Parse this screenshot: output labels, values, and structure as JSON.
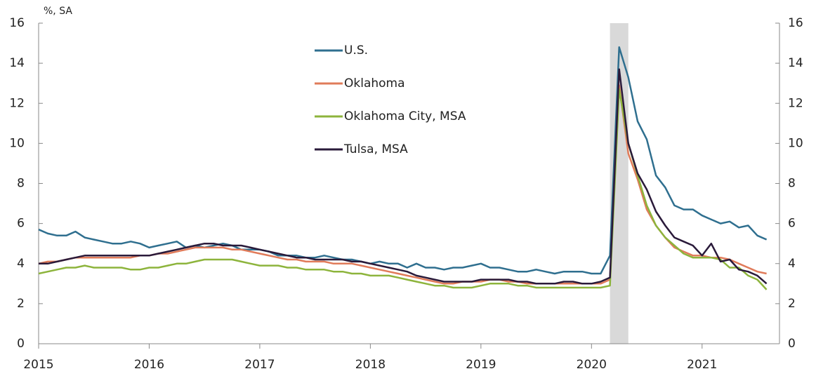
{
  "chart_data": {
    "type": "line",
    "y_label": "%, SA",
    "x": [
      2015,
      2015.083,
      2015.167,
      2015.25,
      2015.333,
      2015.417,
      2015.5,
      2015.583,
      2015.667,
      2015.75,
      2015.833,
      2015.917,
      2016,
      2016.083,
      2016.167,
      2016.25,
      2016.333,
      2016.417,
      2016.5,
      2016.583,
      2016.667,
      2016.75,
      2016.833,
      2016.917,
      2017,
      2017.083,
      2017.167,
      2017.25,
      2017.333,
      2017.417,
      2017.5,
      2017.583,
      2017.667,
      2017.75,
      2017.833,
      2017.917,
      2018,
      2018.083,
      2018.167,
      2018.25,
      2018.333,
      2018.417,
      2018.5,
      2018.583,
      2018.667,
      2018.75,
      2018.833,
      2018.917,
      2019,
      2019.083,
      2019.167,
      2019.25,
      2019.333,
      2019.417,
      2019.5,
      2019.583,
      2019.667,
      2019.75,
      2019.833,
      2019.917,
      2020,
      2020.083,
      2020.167,
      2020.25,
      2020.333,
      2020.417,
      2020.5,
      2020.583,
      2020.667,
      2020.75,
      2020.833,
      2020.917,
      2021,
      2021.083,
      2021.167,
      2021.25,
      2021.333,
      2021.417,
      2021.5,
      2021.583
    ],
    "series": [
      {
        "name": "U.S.",
        "color": "#2f6f8f",
        "values": [
          5.7,
          5.5,
          5.4,
          5.4,
          5.6,
          5.3,
          5.2,
          5.1,
          5.0,
          5.0,
          5.1,
          5.0,
          4.8,
          4.9,
          5.0,
          5.1,
          4.8,
          4.9,
          4.8,
          4.9,
          5.0,
          4.9,
          4.7,
          4.7,
          4.7,
          4.6,
          4.4,
          4.4,
          4.4,
          4.3,
          4.3,
          4.4,
          4.3,
          4.2,
          4.2,
          4.1,
          4.0,
          4.1,
          4.0,
          4.0,
          3.8,
          4.0,
          3.8,
          3.8,
          3.7,
          3.8,
          3.8,
          3.9,
          4.0,
          3.8,
          3.8,
          3.7,
          3.6,
          3.6,
          3.7,
          3.6,
          3.5,
          3.6,
          3.6,
          3.6,
          3.5,
          3.5,
          4.4,
          14.8,
          13.3,
          11.1,
          10.2,
          8.4,
          7.8,
          6.9,
          6.7,
          6.7,
          6.4,
          6.2,
          6.0,
          6.1,
          5.8,
          5.9,
          5.4,
          5.2
        ]
      },
      {
        "name": "Oklahoma",
        "color": "#e07b5a",
        "values": [
          4.0,
          4.1,
          4.1,
          4.2,
          4.3,
          4.3,
          4.3,
          4.3,
          4.3,
          4.3,
          4.3,
          4.4,
          4.4,
          4.5,
          4.5,
          4.6,
          4.7,
          4.8,
          4.8,
          4.8,
          4.8,
          4.7,
          4.7,
          4.6,
          4.5,
          4.4,
          4.3,
          4.2,
          4.2,
          4.1,
          4.1,
          4.1,
          4.0,
          4.0,
          4.0,
          3.9,
          3.8,
          3.7,
          3.6,
          3.5,
          3.4,
          3.3,
          3.2,
          3.1,
          3.0,
          3.0,
          3.1,
          3.1,
          3.1,
          3.2,
          3.2,
          3.1,
          3.1,
          3.0,
          3.0,
          3.0,
          3.0,
          3.0,
          3.0,
          3.0,
          3.0,
          3.0,
          3.2,
          12.9,
          9.5,
          8.2,
          6.7,
          5.9,
          5.3,
          4.8,
          4.6,
          4.4,
          4.4,
          4.3,
          4.3,
          4.2,
          4.0,
          3.8,
          3.6,
          3.5
        ]
      },
      {
        "name": "Oklahoma City, MSA",
        "color": "#8db43c",
        "values": [
          3.5,
          3.6,
          3.7,
          3.8,
          3.8,
          3.9,
          3.8,
          3.8,
          3.8,
          3.8,
          3.7,
          3.7,
          3.8,
          3.8,
          3.9,
          4.0,
          4.0,
          4.1,
          4.2,
          4.2,
          4.2,
          4.2,
          4.1,
          4.0,
          3.9,
          3.9,
          3.9,
          3.8,
          3.8,
          3.7,
          3.7,
          3.7,
          3.6,
          3.6,
          3.5,
          3.5,
          3.4,
          3.4,
          3.4,
          3.3,
          3.2,
          3.1,
          3.0,
          2.9,
          2.9,
          2.8,
          2.8,
          2.8,
          2.9,
          3.0,
          3.0,
          3.0,
          2.9,
          2.9,
          2.8,
          2.8,
          2.8,
          2.8,
          2.8,
          2.8,
          2.8,
          2.8,
          2.9,
          12.7,
          10.0,
          8.4,
          6.9,
          5.9,
          5.3,
          4.9,
          4.5,
          4.3,
          4.3,
          4.3,
          4.2,
          3.8,
          3.8,
          3.4,
          3.2,
          2.7
        ]
      },
      {
        "name": "Tulsa, MSA",
        "color": "#2a1a3a",
        "values": [
          4.0,
          4.0,
          4.1,
          4.2,
          4.3,
          4.4,
          4.4,
          4.4,
          4.4,
          4.4,
          4.4,
          4.4,
          4.4,
          4.5,
          4.6,
          4.7,
          4.8,
          4.9,
          5.0,
          5.0,
          4.9,
          4.9,
          4.9,
          4.8,
          4.7,
          4.6,
          4.5,
          4.4,
          4.3,
          4.3,
          4.2,
          4.2,
          4.2,
          4.2,
          4.1,
          4.1,
          4.0,
          3.9,
          3.8,
          3.7,
          3.6,
          3.4,
          3.3,
          3.2,
          3.1,
          3.1,
          3.1,
          3.1,
          3.2,
          3.2,
          3.2,
          3.2,
          3.1,
          3.1,
          3.0,
          3.0,
          3.0,
          3.1,
          3.1,
          3.0,
          3.0,
          3.1,
          3.3,
          13.7,
          10.0,
          8.5,
          7.7,
          6.6,
          5.9,
          5.3,
          5.1,
          4.9,
          4.4,
          5.0,
          4.1,
          4.2,
          3.7,
          3.6,
          3.4,
          3.0
        ]
      }
    ],
    "recession": [
      2020.167,
      2020.333
    ],
    "xlim": [
      2015,
      2021.7
    ],
    "xticks": [
      2015,
      2016,
      2017,
      2018,
      2019,
      2020,
      2021
    ],
    "ylim": [
      0,
      16
    ],
    "yticks": [
      0,
      2,
      4,
      6,
      8,
      10,
      12,
      14,
      16
    ],
    "y2lim": [
      0,
      16
    ],
    "y2ticks": [
      0,
      2,
      4,
      6,
      8,
      10,
      12,
      14,
      16
    ],
    "legend": "upper center",
    "grid": false
  }
}
